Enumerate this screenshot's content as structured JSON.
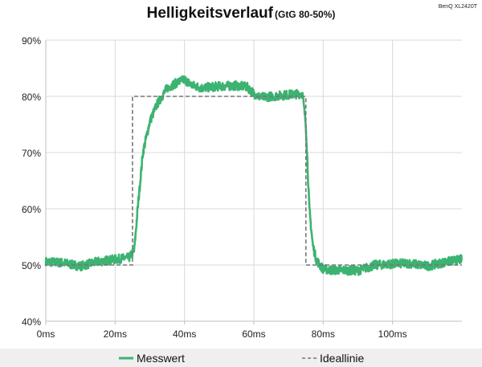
{
  "chart_data": {
    "type": "line",
    "title": "Helligkeitsverlauf",
    "subtitle": "(GtG 80-50%)",
    "device_label": "BenQ XL2420T",
    "x_ticks": [
      "0ms",
      "20ms",
      "40ms",
      "60ms",
      "80ms",
      "100ms"
    ],
    "y_ticks": [
      "40%",
      "50%",
      "60%",
      "70%",
      "80%",
      "90%"
    ],
    "xlim": [
      0,
      120
    ],
    "ylim": [
      40,
      90
    ],
    "grid": "on",
    "legend_position": "bottom",
    "series": [
      {
        "name": "Messwert",
        "color": "#3cb371",
        "style": "solid-noisy",
        "x": [
          0,
          5,
          8,
          10,
          15,
          20,
          24,
          25.5,
          26.5,
          28,
          30,
          32,
          35,
          38,
          40,
          42,
          45,
          50,
          55,
          58,
          60,
          62,
          65,
          70,
          74,
          75,
          76,
          77,
          78,
          79,
          80,
          82,
          85,
          90,
          95,
          100,
          105,
          110,
          115,
          120
        ],
        "y": [
          50.6,
          50.4,
          50.0,
          49.8,
          50.6,
          51.0,
          51.3,
          52.5,
          60.0,
          70.0,
          75.5,
          78.5,
          81.5,
          82.5,
          83.0,
          82.0,
          81.5,
          81.8,
          81.9,
          81.7,
          80.5,
          79.8,
          80.0,
          80.3,
          80.5,
          75.0,
          60.0,
          53.5,
          51.0,
          50.0,
          49.3,
          49.1,
          49.1,
          49.0,
          50.0,
          50.2,
          50.3,
          49.8,
          50.5,
          51.0
        ]
      },
      {
        "name": "Ideallinie",
        "color": "#777777",
        "style": "dashed",
        "x": [
          0,
          25,
          25,
          75,
          75,
          120
        ],
        "y": [
          50,
          50,
          80,
          80,
          50,
          50
        ]
      }
    ]
  },
  "colors": {
    "grid": "#d9d9d9",
    "axis": "#bfbfbf",
    "legend_band": "#efefef"
  }
}
